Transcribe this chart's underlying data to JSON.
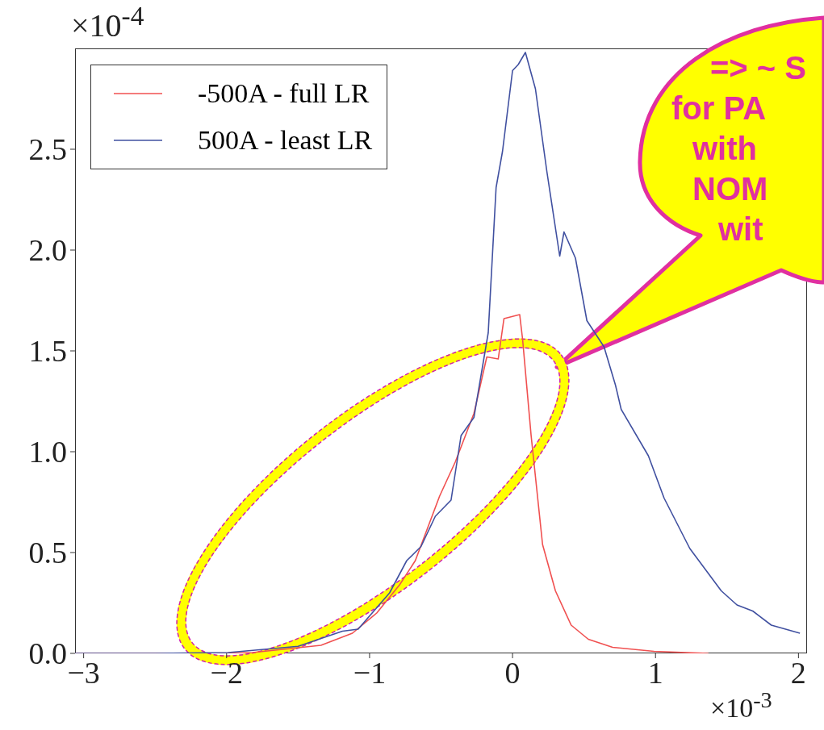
{
  "chart_data": {
    "type": "line",
    "xlim": [
      -3.06,
      2.06
    ],
    "ylim": [
      0,
      3
    ],
    "xticks": [
      {
        "value": -3,
        "label": "−3"
      },
      {
        "value": -2,
        "label": "−2"
      },
      {
        "value": -1,
        "label": "−1"
      },
      0,
      1,
      2
    ],
    "yticks": [
      {
        "value": 0,
        "label": "0.0"
      },
      {
        "value": 0.5,
        "label": "0.5"
      },
      {
        "value": 1,
        "label": "1.0"
      },
      {
        "value": 1.5,
        "label": "1.5"
      },
      {
        "value": 2,
        "label": "2.0"
      },
      {
        "value": 2.5,
        "label": "2.5"
      }
    ],
    "grid": false,
    "legend": "top left",
    "marker": "none",
    "line_style": "solid",
    "series": [
      {
        "name": "-500A - full LR",
        "color": "#f05050",
        "x": [
          -3.06,
          -2.5,
          -2.0,
          -1.82,
          -1.34,
          -1.12,
          -0.95,
          -0.79,
          -0.68,
          -0.51,
          -0.4,
          -0.27,
          -0.18,
          -0.1,
          -0.06,
          0.05,
          0.07,
          0.13,
          0.21,
          0.3,
          0.41,
          0.53,
          0.7,
          0.99,
          1.37
        ],
        "values": [
          0,
          0,
          0,
          0.004,
          0.04,
          0.1,
          0.2,
          0.34,
          0.46,
          0.78,
          0.95,
          1.19,
          1.47,
          1.46,
          1.66,
          1.68,
          1.56,
          1.08,
          0.54,
          0.31,
          0.14,
          0.07,
          0.03,
          0.01,
          0
        ]
      },
      {
        "name": "500A - least LR",
        "color": "#4050a0",
        "x": [
          -3.06,
          -2.5,
          -1.99,
          -1.5,
          -1.19,
          -1.08,
          -0.86,
          -0.74,
          -0.64,
          -0.54,
          -0.43,
          -0.36,
          -0.27,
          -0.17,
          -0.115,
          -0.07,
          0.0,
          0.04,
          0.09,
          0.16,
          0.24,
          0.33,
          0.36,
          0.44,
          0.52,
          0.64,
          0.72,
          0.76,
          0.95,
          1.06,
          1.24,
          1.46,
          1.57,
          1.68,
          1.81,
          2.01
        ],
        "values": [
          0,
          0,
          0.004,
          0.035,
          0.11,
          0.12,
          0.3,
          0.46,
          0.53,
          0.68,
          0.76,
          1.08,
          1.17,
          1.59,
          2.31,
          2.49,
          2.89,
          2.92,
          2.98,
          2.8,
          2.39,
          1.97,
          2.09,
          1.96,
          1.65,
          1.52,
          1.33,
          1.21,
          0.98,
          0.77,
          0.52,
          0.31,
          0.24,
          0.21,
          0.14,
          0.1
        ]
      }
    ],
    "annotations": [
      "×10$^{-4}$",
      "×10$^{-3}$",
      "=> ~ S",
      "for PA",
      "with",
      "NOM",
      "wit"
    ]
  }
}
